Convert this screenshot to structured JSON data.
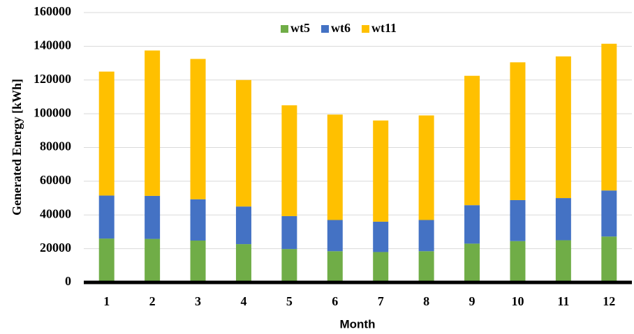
{
  "chart_data": {
    "type": "stacked-bar",
    "y_label": "Generated Energy [kWh]",
    "x_label": "Month",
    "categories": [
      "1",
      "2",
      "3",
      "4",
      "5",
      "6",
      "7",
      "8",
      "9",
      "10",
      "11",
      "12"
    ],
    "series": [
      {
        "name": "wt5",
        "color": "#70ad47",
        "values": [
          26000,
          25800,
          24800,
          22700,
          19800,
          18500,
          18000,
          18500,
          23000,
          24500,
          25000,
          27200
        ]
      },
      {
        "name": "wt6",
        "color": "#4472c4",
        "values": [
          25500,
          25500,
          24500,
          22300,
          19500,
          18500,
          18000,
          18500,
          22800,
          24300,
          25000,
          27300
        ]
      },
      {
        "name": "wt11",
        "color": "#ffc000",
        "values": [
          73500,
          86200,
          83200,
          75000,
          65700,
          62500,
          60000,
          62000,
          76700,
          81700,
          84000,
          87000
        ]
      }
    ],
    "ylim": [
      0,
      160000
    ],
    "yticks": [
      0,
      20000,
      40000,
      60000,
      80000,
      100000,
      120000,
      140000,
      160000
    ],
    "grid": true
  }
}
